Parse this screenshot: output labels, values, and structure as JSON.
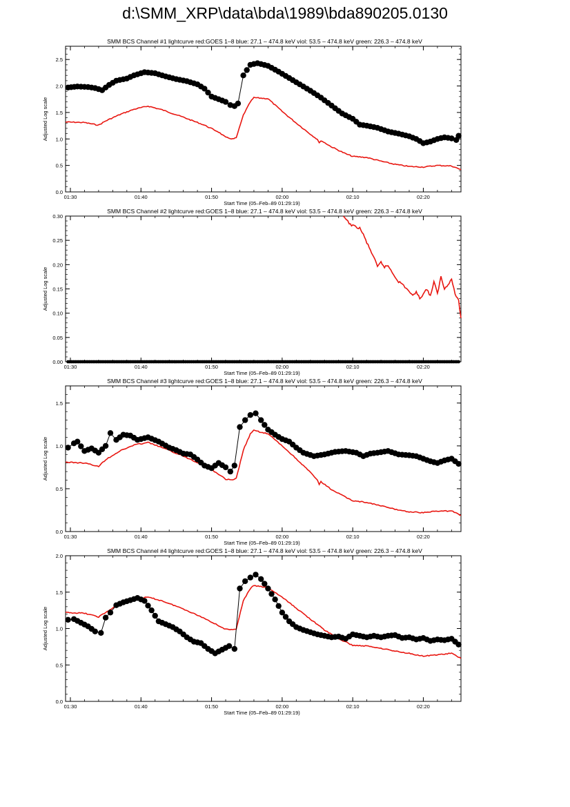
{
  "page": {
    "title": "d:\\SMM_XRP\\data\\bda\\1989\\bda890205.0130"
  },
  "style": {
    "goes_color": "#e8150f",
    "bcs_color": "#000000"
  },
  "chart_data": [
    {
      "type": "line",
      "title": "SMM BCS Channel #1 lightcurve  red:GOES 1–8  blue: 27.1 – 474.8 keV  viol: 53.5 – 474.8 keV  green: 226.3 – 474.8 keV",
      "xlabel": "Start Time (05–Feb–89 01:29:19)",
      "ylabel": "Adjusted Log scale",
      "xlim": [
        "01:29:19",
        "02:25:20"
      ],
      "ylim": [
        0,
        2.75
      ],
      "xticks": [
        "01:30",
        "01:40",
        "01:50",
        "02:00",
        "02:10",
        "02:20"
      ],
      "yticks": [
        "0.0",
        "0.5",
        "1.0",
        "1.5",
        "2.0",
        "2.5"
      ],
      "series": [
        {
          "style": "line",
          "color": "#e8150f",
          "x": [
            "01:29:19",
            "01:32:00",
            "01:34:00",
            "01:35:00",
            "01:37:00",
            "01:39:00",
            "01:41:00",
            "01:43:00",
            "01:46:00",
            "01:49:00",
            "01:51:00",
            "01:52:00",
            "01:53:00",
            "01:53:30",
            "01:54:30",
            "01:55:30",
            "01:56:00",
            "01:58:00",
            "02:00:00",
            "02:02:00",
            "02:04:00",
            "02:05:00",
            "02:05:15",
            "02:05:30",
            "02:07:00",
            "02:09:00",
            "02:10:00",
            "02:12:00",
            "02:14:00",
            "02:16:00",
            "02:18:00",
            "02:20:00",
            "02:22:00",
            "02:24:00",
            "02:25:20"
          ],
          "y": [
            1.32,
            1.31,
            1.26,
            1.34,
            1.46,
            1.56,
            1.62,
            1.55,
            1.41,
            1.26,
            1.13,
            1.03,
            1.0,
            1.02,
            1.45,
            1.7,
            1.78,
            1.76,
            1.52,
            1.3,
            1.09,
            0.99,
            0.92,
            0.97,
            0.85,
            0.72,
            0.67,
            0.65,
            0.58,
            0.52,
            0.48,
            0.47,
            0.5,
            0.49,
            0.42
          ]
        },
        {
          "style": "markers",
          "color": "#000000",
          "x": [
            "01:29:40",
            "01:31:00",
            "01:32:30",
            "01:33:30",
            "01:34:30",
            "01:35:30",
            "01:36:30",
            "01:38:00",
            "01:39:00",
            "01:40:30",
            "01:42:00",
            "01:43:30",
            "01:45:00",
            "01:46:30",
            "01:48:00",
            "01:49:00",
            "01:50:00",
            "01:51:00",
            "01:52:00",
            "01:52:40",
            "01:53:15",
            "01:53:45",
            "01:54:30",
            "01:55:30",
            "01:56:30",
            "01:58:00",
            "01:59:30",
            "02:01:00",
            "02:02:30",
            "02:04:00",
            "02:05:30",
            "02:07:00",
            "02:08:30",
            "02:10:00",
            "02:11:00",
            "02:12:00",
            "02:13:30",
            "02:15:00",
            "02:16:30",
            "02:18:00",
            "02:19:00",
            "02:19:30",
            "02:20:00",
            "02:21:00",
            "02:22:00",
            "02:23:00",
            "02:24:00",
            "02:24:40",
            "02:25:00"
          ],
          "y": [
            1.97,
            1.99,
            1.98,
            1.96,
            1.92,
            2.02,
            2.1,
            2.14,
            2.2,
            2.26,
            2.24,
            2.18,
            2.13,
            2.09,
            2.03,
            1.95,
            1.8,
            1.75,
            1.7,
            1.64,
            1.62,
            1.67,
            2.2,
            2.4,
            2.43,
            2.38,
            2.27,
            2.15,
            2.03,
            1.91,
            1.78,
            1.63,
            1.48,
            1.38,
            1.27,
            1.25,
            1.21,
            1.14,
            1.1,
            1.05,
            1.0,
            0.96,
            0.92,
            0.95,
            1.0,
            1.03,
            1.01,
            0.98,
            1.06
          ]
        }
      ]
    },
    {
      "type": "line",
      "title": "SMM BCS Channel #2 lightcurve  red:GOES 1–8  blue: 27.1 – 474.8 keV  viol: 53.5 – 474.8 keV  green: 226.3 – 474.8 keV",
      "xlabel": "Start Time (05–Feb–89 01:29:19)",
      "ylabel": "Adjusted Log scale",
      "xlim": [
        "01:29:19",
        "02:25:20"
      ],
      "ylim": [
        0,
        0.3
      ],
      "xticks": [
        "01:30",
        "01:40",
        "01:50",
        "02:00",
        "02:10",
        "02:20"
      ],
      "yticks": [
        "0.00",
        "0.05",
        "0.10",
        "0.15",
        "0.20",
        "0.25",
        "0.30"
      ],
      "series": [
        {
          "style": "line",
          "color": "#e8150f",
          "x": [
            "02:08:40",
            "02:09:30",
            "02:10:00",
            "02:11:00",
            "02:11:30",
            "02:12:00",
            "02:12:30",
            "02:13:00",
            "02:13:30",
            "02:14:00",
            "02:14:30",
            "02:15:00",
            "02:16:00",
            "02:16:30",
            "02:17:00",
            "02:18:00",
            "02:18:30",
            "02:19:00",
            "02:19:30",
            "02:20:00",
            "02:20:30",
            "02:21:00",
            "02:21:30",
            "02:22:00",
            "02:22:30",
            "02:23:00",
            "02:23:30",
            "02:24:00",
            "02:24:30",
            "02:25:00",
            "02:25:20"
          ],
          "y": [
            0.3,
            0.285,
            0.28,
            0.275,
            0.262,
            0.245,
            0.23,
            0.215,
            0.195,
            0.205,
            0.195,
            0.198,
            0.175,
            0.165,
            0.16,
            0.145,
            0.135,
            0.145,
            0.13,
            0.14,
            0.15,
            0.135,
            0.165,
            0.14,
            0.175,
            0.15,
            0.16,
            0.17,
            0.14,
            0.125,
            0.09
          ]
        },
        {
          "style": "markers",
          "color": "#000000",
          "x": [
            "01:29:40",
            "01:35:00",
            "01:40:00",
            "01:45:00",
            "01:46:50",
            "01:48:30",
            "01:52:00",
            "01:56:00",
            "02:00:00",
            "02:04:00",
            "02:08:00",
            "02:12:00",
            "02:16:00",
            "02:20:00",
            "02:24:00",
            "02:25:00"
          ],
          "y": [
            0,
            0,
            0,
            0,
            0,
            0,
            0,
            0,
            0,
            0,
            0,
            0,
            0,
            0,
            0,
            0
          ]
        }
      ]
    },
    {
      "type": "line",
      "title": "SMM BCS Channel #3 lightcurve  red:GOES 1–8  blue: 27.1 – 474.8 keV  viol: 53.5 – 474.8 keV  green: 226.3 – 474.8 keV",
      "xlabel": "Start Time (05–Feb–89 01:29:19)",
      "ylabel": "Adjusted Log scale",
      "xlim": [
        "01:29:19",
        "02:25:20"
      ],
      "ylim": [
        0,
        1.7
      ],
      "xticks": [
        "01:30",
        "01:40",
        "01:50",
        "02:00",
        "02:10",
        "02:20"
      ],
      "yticks": [
        "0.0",
        "0.5",
        "1.0",
        "1.5"
      ],
      "series": [
        {
          "style": "line",
          "color": "#e8150f",
          "x": [
            "01:29:19",
            "01:32:00",
            "01:34:00",
            "01:35:00",
            "01:37:00",
            "01:39:00",
            "01:41:00",
            "01:43:00",
            "01:46:00",
            "01:49:00",
            "01:51:00",
            "01:52:00",
            "01:53:00",
            "01:53:30",
            "01:54:30",
            "01:55:30",
            "01:56:00",
            "01:58:00",
            "02:00:00",
            "02:02:00",
            "02:04:00",
            "02:05:00",
            "02:05:15",
            "02:05:30",
            "02:07:00",
            "02:09:00",
            "02:10:00",
            "02:12:00",
            "02:14:00",
            "02:16:00",
            "02:18:00",
            "02:20:00",
            "02:22:00",
            "02:24:00",
            "02:25:20"
          ],
          "y": [
            0.81,
            0.8,
            0.76,
            0.84,
            0.94,
            1.01,
            1.04,
            0.98,
            0.88,
            0.77,
            0.67,
            0.61,
            0.6,
            0.62,
            0.95,
            1.14,
            1.18,
            1.14,
            1.0,
            0.85,
            0.69,
            0.6,
            0.55,
            0.58,
            0.49,
            0.4,
            0.36,
            0.34,
            0.3,
            0.26,
            0.23,
            0.22,
            0.24,
            0.24,
            0.19
          ]
        },
        {
          "style": "markers",
          "color": "#000000",
          "x": [
            "01:29:40",
            "01:30:30",
            "01:31:00",
            "01:32:00",
            "01:33:00",
            "01:34:00",
            "01:35:00",
            "01:35:40",
            "01:36:30",
            "01:37:30",
            "01:38:30",
            "01:39:30",
            "01:41:00",
            "01:42:30",
            "01:44:00",
            "01:45:00",
            "01:46:00",
            "01:47:00",
            "01:48:00",
            "01:49:00",
            "01:50:00",
            "01:51:00",
            "01:52:00",
            "01:52:40",
            "01:53:15",
            "01:54:00",
            "01:54:45",
            "01:55:30",
            "01:56:15",
            "01:57:00",
            "01:58:00",
            "01:59:00",
            "02:00:00",
            "02:01:00",
            "02:02:00",
            "02:03:00",
            "02:04:30",
            "02:06:00",
            "02:07:30",
            "02:09:00",
            "02:10:30",
            "02:11:30",
            "02:12:30",
            "02:13:30",
            "02:15:00",
            "02:16:30",
            "02:18:00",
            "02:19:00",
            "02:20:00",
            "02:21:00",
            "02:22:00",
            "02:23:00",
            "02:24:00",
            "02:25:00"
          ],
          "y": [
            0.98,
            1.03,
            1.05,
            0.94,
            0.97,
            0.92,
            1.0,
            1.15,
            1.07,
            1.13,
            1.12,
            1.07,
            1.1,
            1.05,
            0.98,
            0.95,
            0.91,
            0.9,
            0.84,
            0.77,
            0.74,
            0.8,
            0.75,
            0.7,
            0.77,
            1.22,
            1.3,
            1.36,
            1.38,
            1.3,
            1.19,
            1.13,
            1.08,
            1.05,
            0.98,
            0.92,
            0.88,
            0.9,
            0.93,
            0.94,
            0.92,
            0.88,
            0.91,
            0.92,
            0.94,
            0.9,
            0.89,
            0.88,
            0.85,
            0.82,
            0.8,
            0.83,
            0.85,
            0.79
          ]
        }
      ]
    },
    {
      "type": "line",
      "title": "SMM BCS Channel #4 lightcurve  red:GOES 1–8  blue: 27.1 – 474.8 keV  viol: 53.5 – 474.8 keV  green: 226.3 – 474.8 keV",
      "xlabel": "Start Time (05–Feb–89 01:29:19)",
      "ylabel": "Adjusted Log scale",
      "xlim": [
        "01:29:19",
        "02:25:20"
      ],
      "ylim": [
        0,
        2.0
      ],
      "xticks": [
        "01:30",
        "01:40",
        "01:50",
        "02:00",
        "02:10",
        "02:20"
      ],
      "yticks": [
        "0.0",
        "0.5",
        "1.0",
        "1.5",
        "2.0"
      ],
      "series": [
        {
          "style": "line",
          "color": "#e8150f",
          "x": [
            "01:29:19",
            "01:32:00",
            "01:34:00",
            "01:35:00",
            "01:37:00",
            "01:39:00",
            "01:41:00",
            "01:43:00",
            "01:46:00",
            "01:49:00",
            "01:51:00",
            "01:52:00",
            "01:53:00",
            "01:53:30",
            "01:54:30",
            "01:55:30",
            "01:56:00",
            "01:58:00",
            "02:00:00",
            "02:02:00",
            "02:04:00",
            "02:06:00",
            "02:08:00",
            "02:10:00",
            "02:12:00",
            "02:14:00",
            "02:16:00",
            "02:18:00",
            "02:20:00",
            "02:22:00",
            "02:24:00",
            "02:25:20"
          ],
          "y": [
            1.22,
            1.21,
            1.16,
            1.22,
            1.34,
            1.41,
            1.43,
            1.38,
            1.27,
            1.14,
            1.04,
            0.99,
            0.98,
            1.0,
            1.38,
            1.55,
            1.59,
            1.56,
            1.43,
            1.28,
            1.13,
            0.98,
            0.86,
            0.77,
            0.76,
            0.73,
            0.69,
            0.66,
            0.62,
            0.64,
            0.66,
            0.59
          ]
        },
        {
          "style": "markers",
          "color": "#000000",
          "x": [
            "01:29:40",
            "01:30:30",
            "01:31:30",
            "01:32:30",
            "01:33:30",
            "01:34:20",
            "01:35:00",
            "01:35:40",
            "01:36:30",
            "01:37:30",
            "01:38:30",
            "01:39:30",
            "01:40:30",
            "01:41:30",
            "01:42:30",
            "01:43:30",
            "01:44:30",
            "01:45:30",
            "01:46:30",
            "01:47:30",
            "01:48:30",
            "01:49:30",
            "01:50:30",
            "01:51:30",
            "01:52:30",
            "01:53:15",
            "01:54:00",
            "01:54:45",
            "01:55:30",
            "01:56:15",
            "01:57:00",
            "01:58:00",
            "01:59:00",
            "02:00:00",
            "02:01:00",
            "02:02:00",
            "02:03:00",
            "02:04:00",
            "02:05:00",
            "02:06:00",
            "02:07:00",
            "02:08:00",
            "02:09:00",
            "02:10:00",
            "02:11:00",
            "02:12:00",
            "02:13:00",
            "02:14:00",
            "02:15:00",
            "02:16:00",
            "02:17:00",
            "02:18:00",
            "02:19:00",
            "02:20:00",
            "02:21:00",
            "02:22:00",
            "02:23:00",
            "02:24:00",
            "02:25:00"
          ],
          "y": [
            1.12,
            1.13,
            1.08,
            1.03,
            0.96,
            0.94,
            1.15,
            1.22,
            1.32,
            1.36,
            1.39,
            1.42,
            1.38,
            1.25,
            1.1,
            1.06,
            1.02,
            0.96,
            0.88,
            0.82,
            0.8,
            0.72,
            0.66,
            0.71,
            0.76,
            0.72,
            1.55,
            1.65,
            1.7,
            1.74,
            1.68,
            1.55,
            1.4,
            1.22,
            1.1,
            1.02,
            0.98,
            0.95,
            0.92,
            0.9,
            0.88,
            0.89,
            0.86,
            0.92,
            0.9,
            0.88,
            0.9,
            0.88,
            0.9,
            0.91,
            0.87,
            0.88,
            0.85,
            0.87,
            0.83,
            0.85,
            0.84,
            0.86,
            0.78
          ]
        }
      ]
    }
  ]
}
